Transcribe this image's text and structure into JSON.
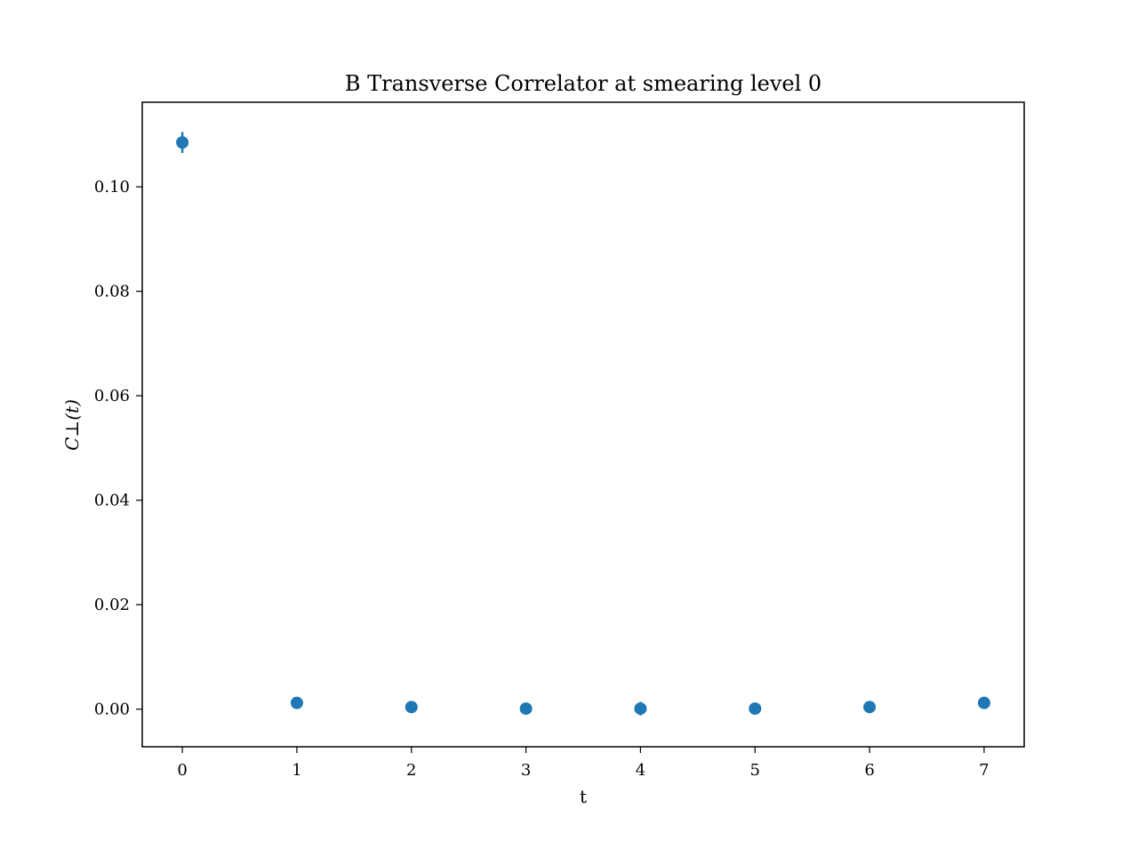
{
  "chart_data": {
    "type": "scatter",
    "title": "B Transverse Correlator at smearing level 0",
    "xlabel": "t",
    "ylabel": "C⊥(t)",
    "xlim": [
      -0.35,
      7.35
    ],
    "ylim": [
      -0.0072,
      0.1162
    ],
    "xticks": [
      0,
      1,
      2,
      3,
      4,
      5,
      6,
      7
    ],
    "xtick_labels": [
      "0",
      "1",
      "2",
      "3",
      "4",
      "5",
      "6",
      "7"
    ],
    "yticks": [
      0.0,
      0.02,
      0.04,
      0.06,
      0.08,
      0.1
    ],
    "ytick_labels": [
      "0.00",
      "0.02",
      "0.04",
      "0.06",
      "0.08",
      "0.10"
    ],
    "grid": false,
    "legend": "none",
    "color": "#1f77b4",
    "series": [
      {
        "x": [
          0,
          1,
          2,
          3,
          4,
          5,
          6,
          7
        ],
        "y": [
          0.1085,
          0.0012,
          0.0004,
          0.0001,
          0.0001,
          0.0001,
          0.0004,
          0.0012
        ],
        "yerr": [
          0.002,
          0.0003,
          0.0003,
          0.0003,
          0.0013,
          0.0003,
          0.0003,
          0.0003
        ]
      }
    ]
  }
}
